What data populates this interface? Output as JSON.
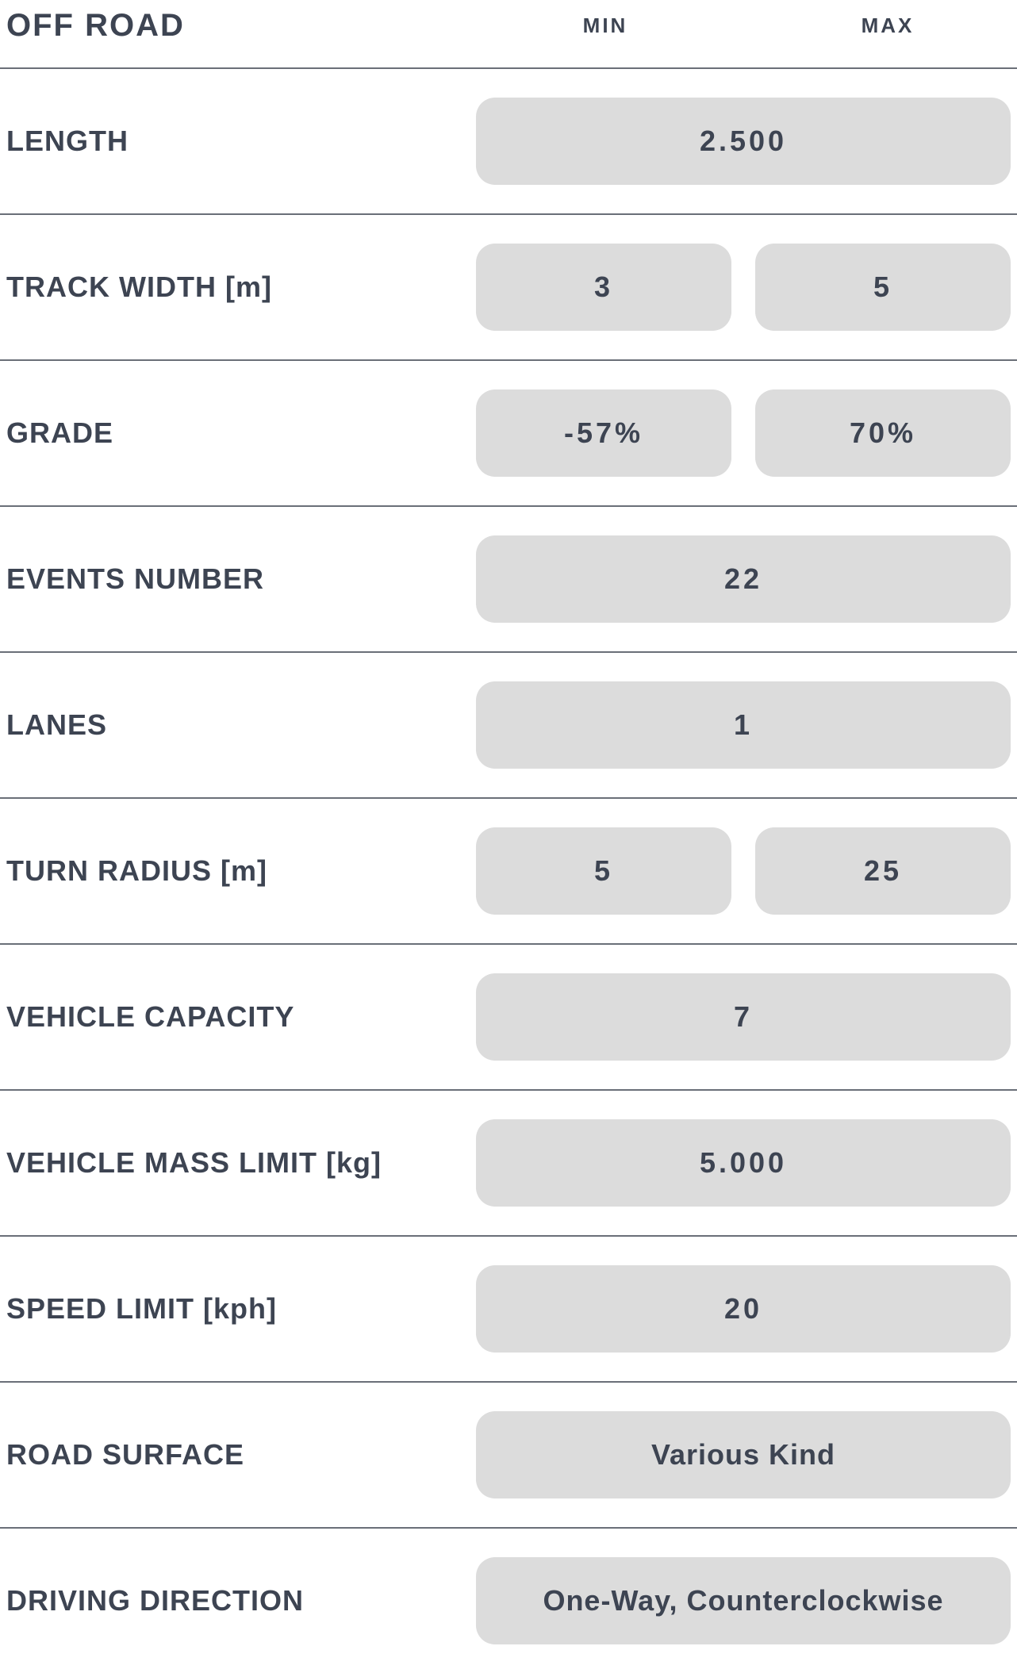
{
  "header": {
    "title": "OFF ROAD",
    "col_min": "MIN",
    "col_max": "MAX"
  },
  "rows": [
    {
      "label": "LENGTH",
      "type": "single",
      "value": "2.500"
    },
    {
      "label": "TRACK WIDTH [m]",
      "type": "minmax",
      "min": "3",
      "max": "5"
    },
    {
      "label": "GRADE",
      "type": "minmax",
      "min": "-57%",
      "max": "70%"
    },
    {
      "label": "EVENTS NUMBER",
      "type": "single",
      "value": "22"
    },
    {
      "label": "LANES",
      "type": "single",
      "value": "1"
    },
    {
      "label": "TURN RADIUS [m]",
      "type": "minmax",
      "min": "5",
      "max": "25"
    },
    {
      "label": "VEHICLE CAPACITY",
      "type": "single",
      "value": "7"
    },
    {
      "label": "VEHICLE MASS LIMIT [kg]",
      "type": "single",
      "value": "5.000"
    },
    {
      "label": "SPEED LIMIT [kph]",
      "type": "single",
      "value": "20"
    },
    {
      "label": "ROAD SURFACE",
      "type": "text",
      "value": "Various Kind"
    },
    {
      "label": "DRIVING DIRECTION",
      "type": "text",
      "value": "One-Way, Counterclockwise"
    }
  ],
  "colors": {
    "text": "#3d4452",
    "box_bg": "#dcdcdc",
    "divider": "#6a6f78",
    "background": "#ffffff"
  }
}
